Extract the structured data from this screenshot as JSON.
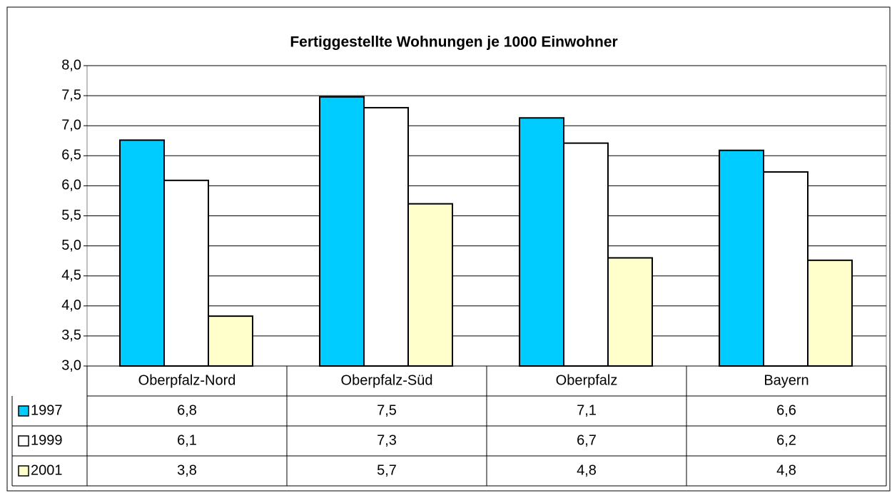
{
  "chart_data": {
    "type": "bar",
    "title": "Fertiggestellte Wohnungen je 1000 Einwohner",
    "categories": [
      "Oberpfalz-Nord",
      "Oberpfalz-Süd",
      "Oberpfalz",
      "Bayern"
    ],
    "series": [
      {
        "name": "1997",
        "color": "#00ccff",
        "values": [
          6.76,
          7.48,
          7.13,
          6.59
        ],
        "value_labels": [
          "6,8",
          "7,5",
          "7,1",
          "6,6"
        ]
      },
      {
        "name": "1999",
        "color": "#ffffff",
        "values": [
          6.09,
          7.3,
          6.71,
          6.23
        ],
        "value_labels": [
          "6,1",
          "7,3",
          "6,7",
          "6,2"
        ]
      },
      {
        "name": "2001",
        "color": "#ffffcc",
        "values": [
          3.83,
          5.7,
          4.8,
          4.76
        ],
        "value_labels": [
          "3,8",
          "5,7",
          "4,8",
          "4,8"
        ]
      }
    ],
    "ylim": [
      3,
      8
    ],
    "yticks": [
      {
        "value": 3,
        "label": "3,0"
      },
      {
        "value": 3.5,
        "label": "3,5"
      },
      {
        "value": 4,
        "label": "4,0"
      },
      {
        "value": 4.5,
        "label": "4,5"
      },
      {
        "value": 5,
        "label": "5,0"
      },
      {
        "value": 5.5,
        "label": "5,5"
      },
      {
        "value": 6,
        "label": "6,0"
      },
      {
        "value": 6.5,
        "label": "6,5"
      },
      {
        "value": 7,
        "label": "7,0"
      },
      {
        "value": 7.5,
        "label": "7,5"
      },
      {
        "value": 8,
        "label": "8,0"
      }
    ],
    "grid": true
  }
}
